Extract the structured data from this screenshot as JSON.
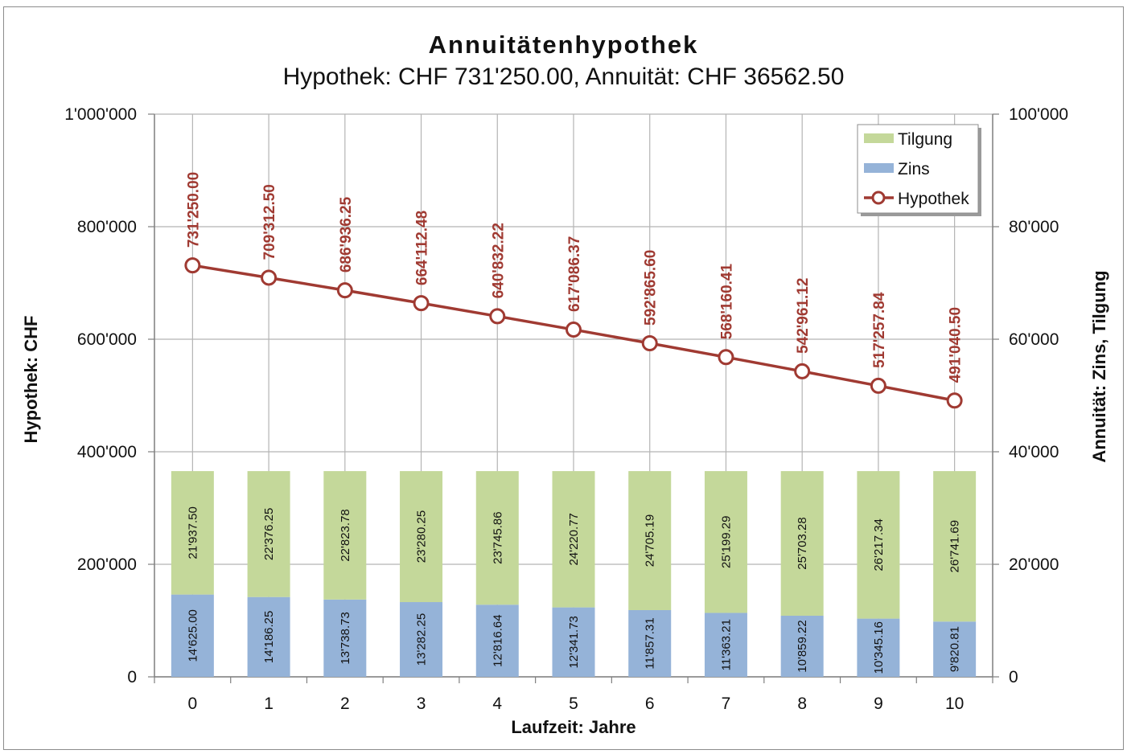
{
  "chart_data": {
    "type": "bar",
    "title": "Annuitätenhypothek",
    "subtitle": "Hypothek: CHF 731'250.00, Annuität: CHF 36562.50",
    "xlabel": "Laufzeit: Jahre",
    "ylabel_left": "Hypothek: CHF",
    "ylabel_right": "Annuität: Zins, Tilgung",
    "categories": [
      "0",
      "1",
      "2",
      "3",
      "4",
      "5",
      "6",
      "7",
      "8",
      "9",
      "10"
    ],
    "ylim_left": [
      0,
      1000000
    ],
    "ylim_right": [
      0,
      100000
    ],
    "yticks_left": [
      "0",
      "200'000",
      "400'000",
      "600'000",
      "800'000",
      "1'000'000"
    ],
    "yticks_right": [
      "0",
      "20'000",
      "40'000",
      "60'000",
      "80'000",
      "100'000"
    ],
    "grid": "vertical",
    "legend_position": "top-right",
    "series": [
      {
        "name": "Tilgung",
        "kind": "stacked-bar",
        "axis": "right",
        "color": "#c4d89a",
        "values": [
          21937.5,
          22376.25,
          22823.78,
          23280.25,
          23745.86,
          24220.77,
          24705.19,
          25199.29,
          25703.28,
          26217.34,
          26741.69
        ],
        "labels": [
          "21'937.50",
          "22'376.25",
          "22'823.78",
          "23'280.25",
          "23'745.86",
          "24'220.77",
          "24'705.19",
          "25'199.29",
          "25'703.28",
          "26'217.34",
          "26'741.69"
        ]
      },
      {
        "name": "Zins",
        "kind": "stacked-bar",
        "axis": "right",
        "color": "#95b3d8",
        "values": [
          14625.0,
          14186.25,
          13738.73,
          13282.25,
          12816.64,
          12341.73,
          11857.31,
          11363.21,
          10859.22,
          10345.16,
          9820.81
        ],
        "labels": [
          "14'625.00",
          "14'186.25",
          "13'738.73",
          "13'282.25",
          "12'816.64",
          "12'341.73",
          "11'857.31",
          "11'363.21",
          "10'859.22",
          "10'345.16",
          "9'820.81"
        ]
      },
      {
        "name": "Hypothek",
        "kind": "line",
        "axis": "left",
        "color": "#a03a32",
        "values": [
          731250.0,
          709312.5,
          686936.25,
          664112.48,
          640832.22,
          617086.37,
          592865.6,
          568160.41,
          542961.12,
          517257.84,
          491040.5
        ],
        "labels": [
          "731'250.00",
          "709'312.50",
          "686'936.25",
          "664'112.48",
          "640'832.22",
          "617'086.37",
          "592'865.60",
          "568'160.41",
          "542'961.12",
          "517'257.84",
          "491'040.50"
        ]
      }
    ]
  }
}
